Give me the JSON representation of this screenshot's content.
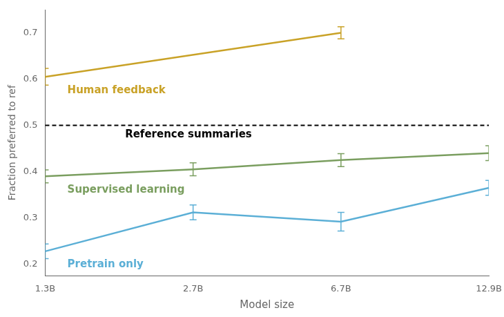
{
  "chart_data": {
    "type": "line",
    "categories": [
      "1.3B",
      "2.7B",
      "6.7B",
      "12.9B"
    ],
    "xlabel": "Model size",
    "ylabel": "Fraction preferred to ref",
    "ylim": [
      0.175,
      0.75
    ],
    "yticks": [
      0.2,
      0.3,
      0.4,
      0.5,
      0.6,
      0.7
    ],
    "grid": false,
    "series": [
      {
        "name": "Human feedback",
        "color": "#C9A227",
        "values": [
          0.605,
          null,
          0.7,
          null
        ],
        "errors": [
          0.018,
          null,
          0.013,
          null
        ]
      },
      {
        "name": "Supervised learning",
        "color": "#7A9E5F",
        "values": [
          0.39,
          0.405,
          0.425,
          0.44
        ],
        "errors": [
          0.014,
          0.014,
          0.014,
          0.016
        ]
      },
      {
        "name": "Pretrain only",
        "color": "#5BAFD6",
        "values": [
          0.228,
          0.312,
          0.292,
          0.365
        ],
        "errors": [
          0.016,
          0.016,
          0.02,
          0.016
        ]
      }
    ],
    "reference_line": {
      "y": 0.5,
      "label": "Reference summaries",
      "color": "#000000",
      "line_style": "dashed"
    }
  }
}
